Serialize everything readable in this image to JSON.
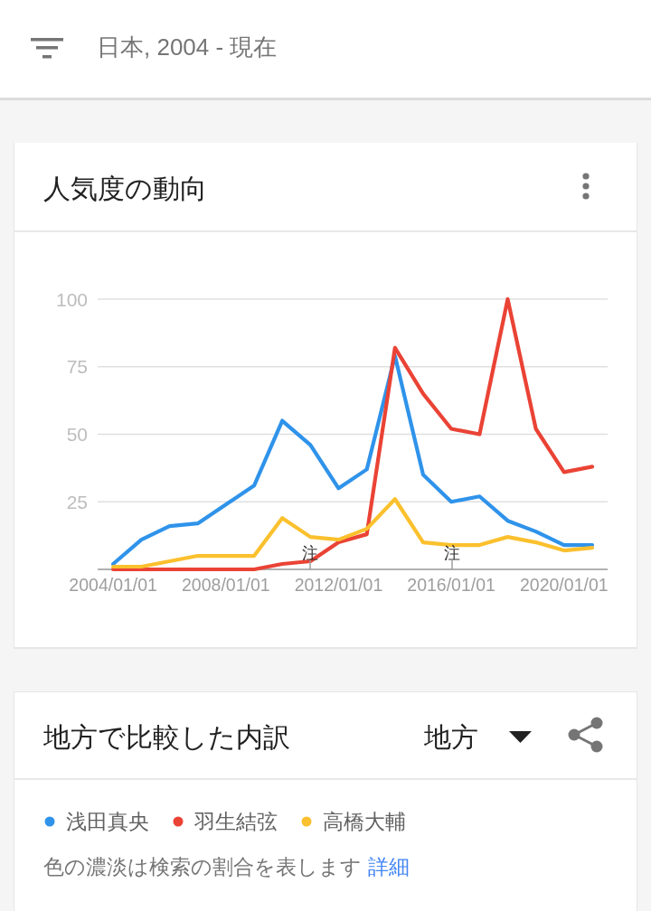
{
  "chart_data": {
    "type": "line",
    "title": "人気度の動向",
    "subtitle": "日本, 2004 - 現在",
    "x": [
      "2004-01-01",
      "2005-01-01",
      "2006-01-01",
      "2007-01-01",
      "2008-01-01",
      "2009-01-01",
      "2010-01-01",
      "2011-01-01",
      "2012-01-01",
      "2013-01-01",
      "2014-01-01",
      "2015-01-01",
      "2016-01-01",
      "2017-01-01",
      "2018-01-01",
      "2019-01-01",
      "2020-01-01",
      "2021-01-01"
    ],
    "series": [
      {
        "name": "浅田真央",
        "color": "#2f93ea",
        "values": [
          2,
          11,
          16,
          17,
          24,
          31,
          55,
          46,
          30,
          37,
          79,
          35,
          25,
          27,
          18,
          14,
          9,
          9
        ]
      },
      {
        "name": "羽生結弦",
        "color": "#ea4335",
        "values": [
          0,
          0,
          0,
          0,
          0,
          0,
          2,
          3,
          10,
          13,
          82,
          65,
          52,
          50,
          100,
          52,
          36,
          38
        ]
      },
      {
        "name": "高橋大輔",
        "color": "#fbc02d",
        "values": [
          1,
          1,
          3,
          5,
          5,
          5,
          19,
          12,
          11,
          15,
          26,
          10,
          9,
          9,
          12,
          10,
          7,
          8
        ]
      }
    ],
    "xlim": [
      "2003-06-14",
      "2021-07-19"
    ],
    "ylim": [
      0,
      100
    ],
    "xticks": [
      {
        "value": "2004-01-01",
        "label": "2004/01/01"
      },
      {
        "value": "2008-01-01",
        "label": "2008/01/01"
      },
      {
        "value": "2012-01-01",
        "label": "2012/01/01"
      },
      {
        "value": "2016-01-01",
        "label": "2016/01/01"
      },
      {
        "value": "2020-01-01",
        "label": "2020/01/01"
      }
    ],
    "yticks": [
      {
        "value": 0,
        "label": null
      },
      25,
      50,
      75,
      100
    ],
    "grid": "y",
    "legend": "bottom",
    "annotations": [
      "注",
      "注",
      "地方で比較した内訳",
      "地方",
      "色の濃淡は検索の割合を表します",
      "詳細"
    ]
  }
}
